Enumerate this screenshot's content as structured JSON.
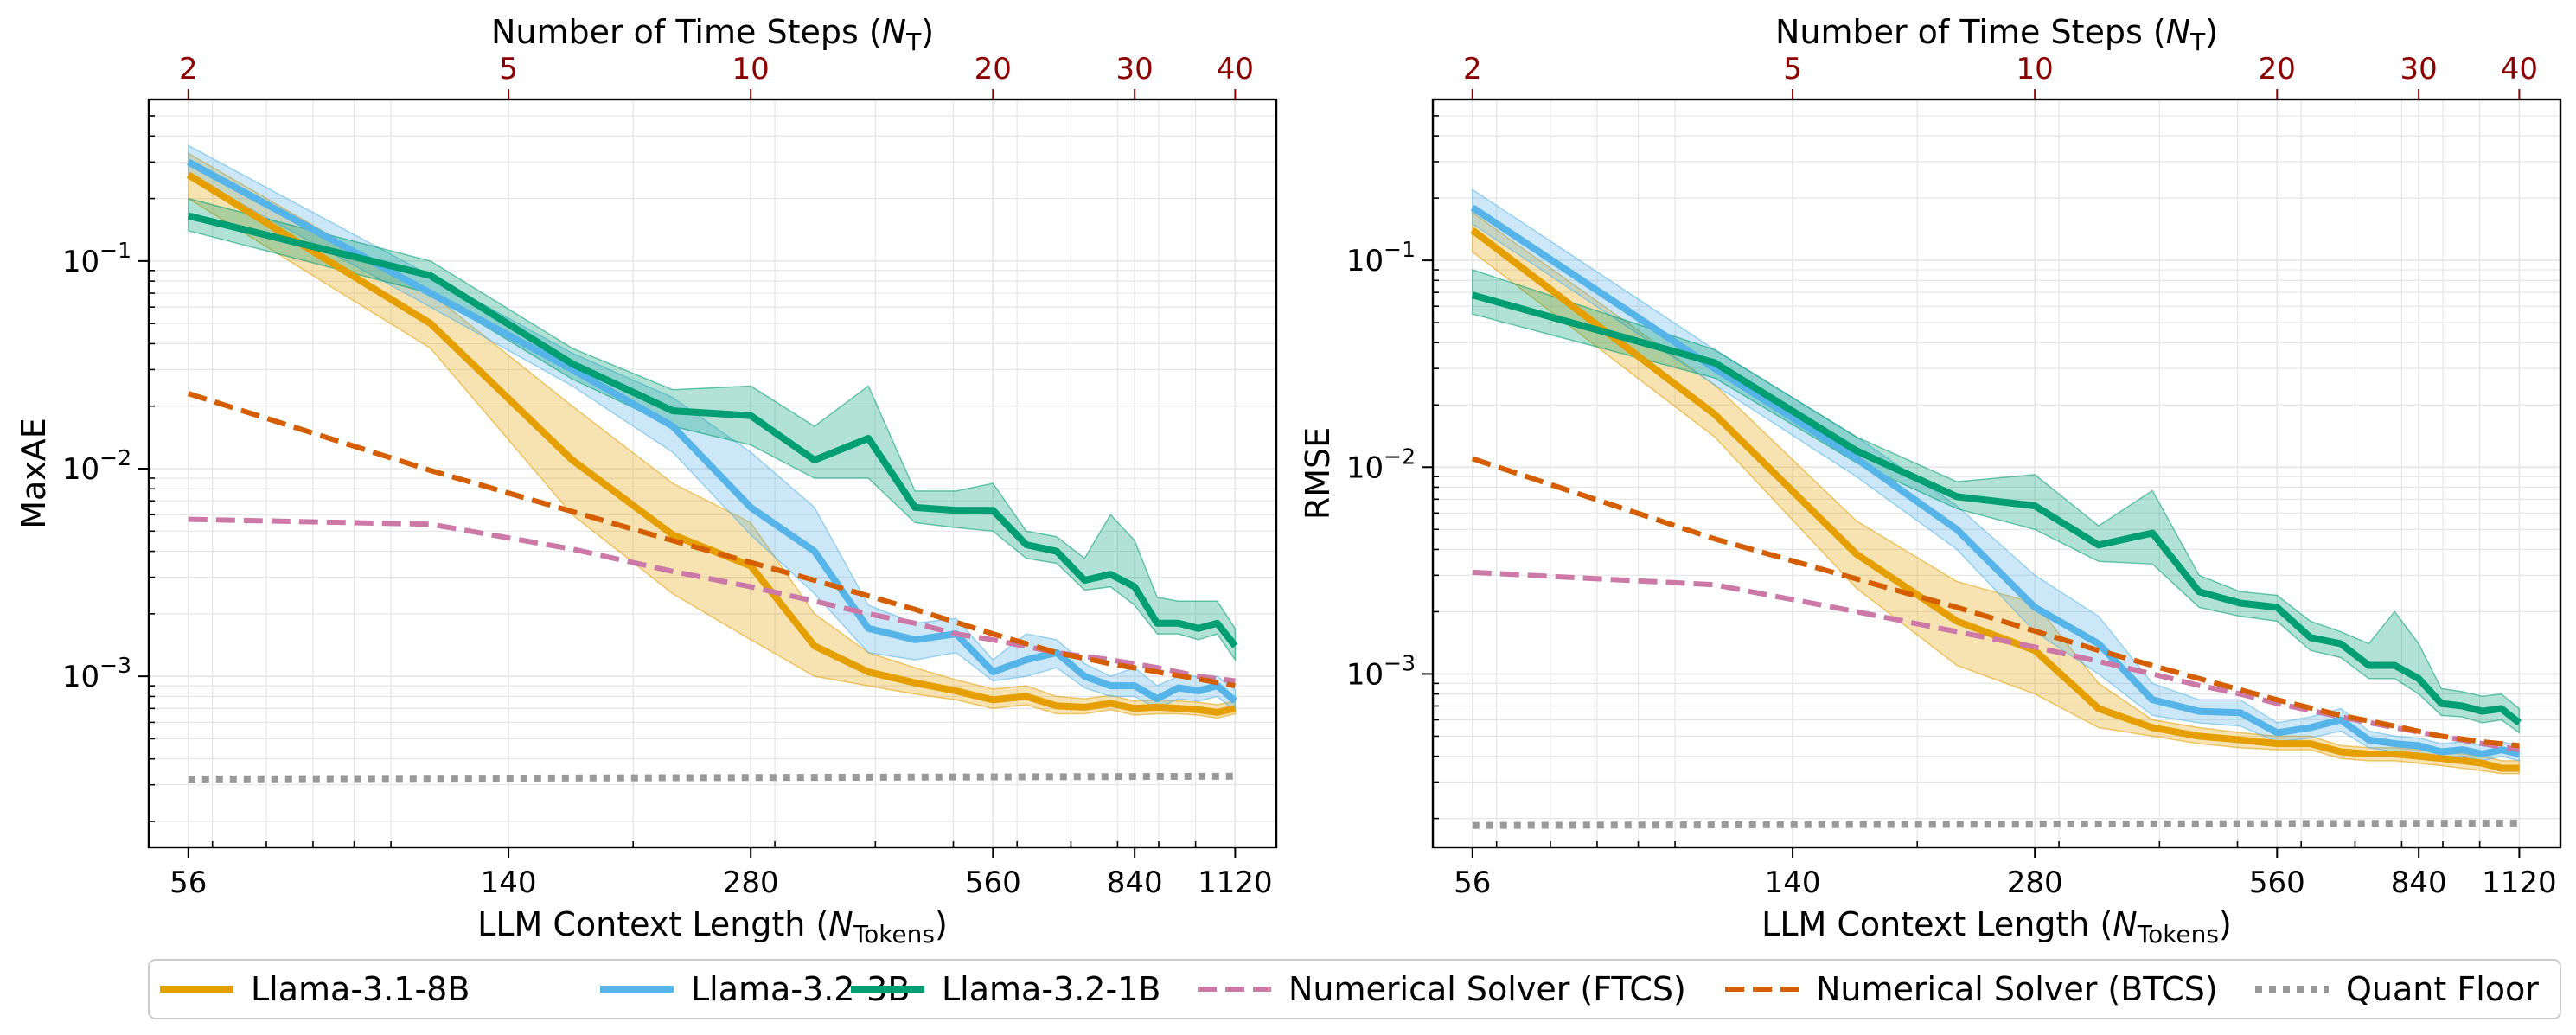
{
  "colors": {
    "top_axis": "#8b0000",
    "grid": "#e6e6e6",
    "quant_floor": "#999999"
  },
  "chart_data": [
    {
      "type": "line",
      "ylabel": "MaxAE",
      "xlabel_main": "LLM Context Length (",
      "xlabel_sym": "N",
      "xlabel_sub": "Tokens",
      "xlabel_close": ")",
      "xlabel_top_main": "Number of Time Steps (",
      "xlabel_top_sym": "N",
      "xlabel_top_sub": "T",
      "xlabel_top_close": ")",
      "xscale": "log",
      "yscale": "log",
      "xlim": [
        50,
        1260
      ],
      "ylim": [
        0.00015,
        0.6
      ],
      "xticks": [
        56,
        140,
        280,
        560,
        840,
        1120
      ],
      "xtick_labels": [
        "56",
        "140",
        "280",
        "560",
        "840",
        "1120"
      ],
      "top_xticks": [
        2,
        5,
        10,
        20,
        30,
        40
      ],
      "top_xtick_labels": [
        "2",
        "5",
        "10",
        "20",
        "30",
        "40"
      ],
      "yticks": [
        0.001,
        0.01,
        0.1
      ],
      "ytick_labels": [
        [
          "10",
          "−3"
        ],
        [
          "10",
          "−2"
        ],
        [
          "10",
          "−1"
        ]
      ],
      "series": [
        {
          "name": "Llama-3.1-8B",
          "color": "#e69f00",
          "style": "solid",
          "x": [
            56,
            112,
            168,
            224,
            280,
            336,
            392,
            448,
            504,
            560,
            616,
            672,
            728,
            784,
            840,
            896,
            952,
            1008,
            1064,
            1120
          ],
          "y": [
            0.26,
            0.05,
            0.011,
            0.0048,
            0.0034,
            0.0014,
            0.00105,
            0.00093,
            0.00085,
            0.00077,
            0.0008,
            0.00072,
            0.00071,
            0.00074,
            0.0007,
            0.00071,
            0.0007,
            0.00069,
            0.00067,
            0.0007
          ],
          "lo": [
            0.2,
            0.038,
            0.006,
            0.0025,
            0.0015,
            0.001,
            0.0009,
            0.00082,
            0.00077,
            0.0007,
            0.00073,
            0.00066,
            0.00066,
            0.00069,
            0.00065,
            0.00066,
            0.00066,
            0.00065,
            0.00063,
            0.00066
          ],
          "hi": [
            0.33,
            0.07,
            0.02,
            0.0085,
            0.0055,
            0.002,
            0.0013,
            0.0011,
            0.00096,
            0.00087,
            0.0009,
            0.0008,
            0.00078,
            0.00081,
            0.00076,
            0.00077,
            0.00076,
            0.00075,
            0.00073,
            0.00076
          ]
        },
        {
          "name": "Llama-3.2-3B",
          "color": "#56b4e9",
          "style": "solid",
          "x": [
            56,
            112,
            168,
            224,
            280,
            336,
            392,
            448,
            504,
            560,
            616,
            672,
            728,
            784,
            840,
            896,
            952,
            1008,
            1064,
            1120
          ],
          "y": [
            0.3,
            0.07,
            0.03,
            0.016,
            0.0065,
            0.004,
            0.0017,
            0.0015,
            0.0016,
            0.00105,
            0.0012,
            0.0013,
            0.001,
            0.0009,
            0.0009,
            0.00078,
            0.00088,
            0.00085,
            0.0009,
            0.00076
          ],
          "lo": [
            0.26,
            0.06,
            0.025,
            0.012,
            0.0048,
            0.0025,
            0.0013,
            0.0012,
            0.0013,
            0.00095,
            0.001,
            0.0011,
            0.00088,
            0.0008,
            0.0008,
            0.0007,
            0.00078,
            0.00076,
            0.0008,
            0.00068
          ],
          "hi": [
            0.36,
            0.085,
            0.036,
            0.022,
            0.012,
            0.0065,
            0.0022,
            0.0018,
            0.0019,
            0.0012,
            0.0016,
            0.0015,
            0.00115,
            0.001,
            0.0011,
            0.0009,
            0.001,
            0.001,
            0.001,
            0.00086
          ]
        },
        {
          "name": "Llama-3.2-1B",
          "color": "#009e73",
          "style": "solid",
          "x": [
            56,
            112,
            168,
            224,
            280,
            336,
            392,
            448,
            504,
            560,
            616,
            672,
            728,
            784,
            840,
            896,
            952,
            1008,
            1064,
            1120
          ],
          "y": [
            0.165,
            0.085,
            0.032,
            0.019,
            0.018,
            0.011,
            0.014,
            0.0065,
            0.0063,
            0.0063,
            0.0043,
            0.004,
            0.0029,
            0.0031,
            0.0027,
            0.0018,
            0.0018,
            0.0017,
            0.0018,
            0.0014
          ],
          "lo": [
            0.14,
            0.07,
            0.027,
            0.016,
            0.013,
            0.009,
            0.009,
            0.0055,
            0.0052,
            0.005,
            0.0037,
            0.0035,
            0.0026,
            0.0027,
            0.0022,
            0.0016,
            0.0016,
            0.0015,
            0.0016,
            0.0012
          ],
          "hi": [
            0.2,
            0.1,
            0.038,
            0.024,
            0.025,
            0.016,
            0.025,
            0.0078,
            0.0078,
            0.0085,
            0.005,
            0.0047,
            0.0037,
            0.006,
            0.0045,
            0.0024,
            0.0023,
            0.0023,
            0.0023,
            0.0017
          ]
        },
        {
          "name": "Numerical Solver (FTCS)",
          "color": "#cc79a7",
          "style": "dash",
          "x": [
            56,
            112,
            168,
            224,
            280,
            336,
            392,
            448,
            504,
            560,
            672,
            784,
            896,
            1008,
            1120
          ],
          "y": [
            0.0057,
            0.0054,
            0.0041,
            0.0032,
            0.0027,
            0.0023,
            0.002,
            0.0018,
            0.0016,
            0.0015,
            0.0013,
            0.0012,
            0.0011,
            0.001,
            0.00095
          ]
        },
        {
          "name": "Numerical Solver (BTCS)",
          "color": "#d55e00",
          "style": "dash",
          "x": [
            56,
            112,
            224,
            336,
            448,
            560,
            672,
            784,
            896,
            1008,
            1120
          ],
          "y": [
            0.023,
            0.0098,
            0.0045,
            0.0029,
            0.0021,
            0.0016,
            0.0013,
            0.00115,
            0.00105,
            0.00097,
            0.0009
          ]
        },
        {
          "name": "Quant Floor",
          "color": "#999999",
          "style": "dot",
          "x": [
            56,
            1120
          ],
          "y": [
            0.00032,
            0.00033
          ]
        }
      ]
    },
    {
      "type": "line",
      "ylabel": "RMSE",
      "xlabel_main": "LLM Context Length (",
      "xlabel_sym": "N",
      "xlabel_sub": "Tokens",
      "xlabel_close": ")",
      "xlabel_top_main": "Number of Time Steps (",
      "xlabel_top_sym": "N",
      "xlabel_top_sub": "T",
      "xlabel_top_close": ")",
      "xscale": "log",
      "yscale": "log",
      "xlim": [
        50,
        1260
      ],
      "ylim": [
        0.000145,
        0.6
      ],
      "xticks": [
        56,
        140,
        280,
        560,
        840,
        1120
      ],
      "xtick_labels": [
        "56",
        "140",
        "280",
        "560",
        "840",
        "1120"
      ],
      "top_xticks": [
        2,
        5,
        10,
        20,
        30,
        40
      ],
      "top_xtick_labels": [
        "2",
        "5",
        "10",
        "20",
        "30",
        "40"
      ],
      "yticks": [
        0.001,
        0.01,
        0.1
      ],
      "ytick_labels": [
        [
          "10",
          "−3"
        ],
        [
          "10",
          "−2"
        ],
        [
          "10",
          "−1"
        ]
      ],
      "series": [
        {
          "name": "Llama-3.1-8B",
          "color": "#e69f00",
          "style": "solid",
          "x": [
            56,
            112,
            168,
            224,
            280,
            336,
            392,
            448,
            504,
            560,
            616,
            672,
            728,
            784,
            840,
            896,
            952,
            1008,
            1064,
            1120
          ],
          "y": [
            0.14,
            0.018,
            0.0038,
            0.0018,
            0.0013,
            0.00068,
            0.00055,
            0.0005,
            0.00048,
            0.00046,
            0.00046,
            0.00042,
            0.00041,
            0.00041,
            0.0004,
            0.00039,
            0.00038,
            0.00037,
            0.00035,
            0.00035
          ],
          "lo": [
            0.11,
            0.014,
            0.0026,
            0.0011,
            0.0008,
            0.00055,
            0.0005,
            0.00046,
            0.00044,
            0.00043,
            0.00043,
            0.00039,
            0.00038,
            0.00038,
            0.00037,
            0.00036,
            0.00035,
            0.00034,
            0.00033,
            0.00033
          ],
          "hi": [
            0.17,
            0.025,
            0.0055,
            0.0028,
            0.0022,
            0.0009,
            0.0006,
            0.00055,
            0.00052,
            0.0005,
            0.0005,
            0.00045,
            0.00044,
            0.00044,
            0.00043,
            0.00042,
            0.00041,
            0.0004,
            0.00038,
            0.00038
          ]
        },
        {
          "name": "Llama-3.2-3B",
          "color": "#56b4e9",
          "style": "solid",
          "x": [
            56,
            112,
            168,
            224,
            280,
            336,
            392,
            448,
            504,
            560,
            616,
            672,
            728,
            784,
            840,
            896,
            952,
            1008,
            1064,
            1120
          ],
          "y": [
            0.18,
            0.03,
            0.011,
            0.005,
            0.0021,
            0.0014,
            0.00075,
            0.00066,
            0.00065,
            0.00052,
            0.00055,
            0.0006,
            0.00048,
            0.00046,
            0.00045,
            0.00042,
            0.00043,
            0.00041,
            0.00043,
            0.00041
          ],
          "lo": [
            0.15,
            0.025,
            0.009,
            0.004,
            0.0016,
            0.001,
            0.00063,
            0.00058,
            0.00056,
            0.00047,
            0.00049,
            0.00053,
            0.00044,
            0.00042,
            0.00041,
            0.00039,
            0.0004,
            0.00038,
            0.0004,
            0.00038
          ],
          "hi": [
            0.22,
            0.037,
            0.014,
            0.0065,
            0.003,
            0.0019,
            0.0009,
            0.00075,
            0.00075,
            0.00058,
            0.00062,
            0.00068,
            0.00053,
            0.0005,
            0.00049,
            0.00046,
            0.00047,
            0.00045,
            0.00047,
            0.00045
          ]
        },
        {
          "name": "Llama-3.2-1B",
          "color": "#009e73",
          "style": "solid",
          "x": [
            56,
            112,
            168,
            224,
            280,
            336,
            392,
            448,
            504,
            560,
            616,
            672,
            728,
            784,
            840,
            896,
            952,
            1008,
            1064,
            1120
          ],
          "y": [
            0.068,
            0.032,
            0.012,
            0.0072,
            0.0065,
            0.0042,
            0.0048,
            0.0025,
            0.0022,
            0.0021,
            0.0015,
            0.0014,
            0.0011,
            0.0011,
            0.00095,
            0.00072,
            0.0007,
            0.00066,
            0.00068,
            0.00058
          ],
          "lo": [
            0.055,
            0.027,
            0.0105,
            0.0063,
            0.005,
            0.0035,
            0.0034,
            0.0021,
            0.0019,
            0.0018,
            0.0013,
            0.0012,
            0.00095,
            0.00095,
            0.0008,
            0.00063,
            0.00062,
            0.00058,
            0.0006,
            0.00052
          ],
          "hi": [
            0.09,
            0.037,
            0.014,
            0.0085,
            0.0092,
            0.0052,
            0.0077,
            0.003,
            0.0025,
            0.0024,
            0.0018,
            0.0016,
            0.0014,
            0.002,
            0.0014,
            0.00085,
            0.00082,
            0.00078,
            0.0008,
            0.00068
          ]
        },
        {
          "name": "Numerical Solver (FTCS)",
          "color": "#cc79a7",
          "style": "dash",
          "x": [
            56,
            112,
            168,
            224,
            280,
            336,
            392,
            448,
            504,
            560,
            672,
            784,
            896,
            1008,
            1120
          ],
          "y": [
            0.0031,
            0.0027,
            0.002,
            0.0016,
            0.00135,
            0.00115,
            0.001,
            0.00088,
            0.0008,
            0.00072,
            0.00062,
            0.00055,
            0.0005,
            0.00046,
            0.00043
          ]
        },
        {
          "name": "Numerical Solver (BTCS)",
          "color": "#d55e00",
          "style": "dash",
          "x": [
            56,
            112,
            224,
            336,
            448,
            560,
            672,
            784,
            896,
            1008,
            1120
          ],
          "y": [
            0.011,
            0.0045,
            0.0021,
            0.0013,
            0.00095,
            0.00075,
            0.00063,
            0.00056,
            0.0005,
            0.00047,
            0.00045
          ]
        },
        {
          "name": "Quant Floor",
          "color": "#999999",
          "style": "dot",
          "x": [
            56,
            1120
          ],
          "y": [
            0.000185,
            0.00019
          ]
        }
      ]
    }
  ],
  "legend": {
    "items": [
      {
        "label": "Llama-3.1-8B",
        "color": "#e69f00",
        "style": "solid"
      },
      {
        "label": "Llama-3.2-3B",
        "color": "#56b4e9",
        "style": "solid"
      },
      {
        "label": "Llama-3.2-1B",
        "color": "#009e73",
        "style": "solid"
      },
      {
        "label": "Numerical Solver (FTCS)",
        "color": "#cc79a7",
        "style": "dash"
      },
      {
        "label": "Numerical Solver (BTCS)",
        "color": "#d55e00",
        "style": "dash"
      },
      {
        "label": "Quant Floor",
        "color": "#999999",
        "style": "dot"
      }
    ]
  }
}
